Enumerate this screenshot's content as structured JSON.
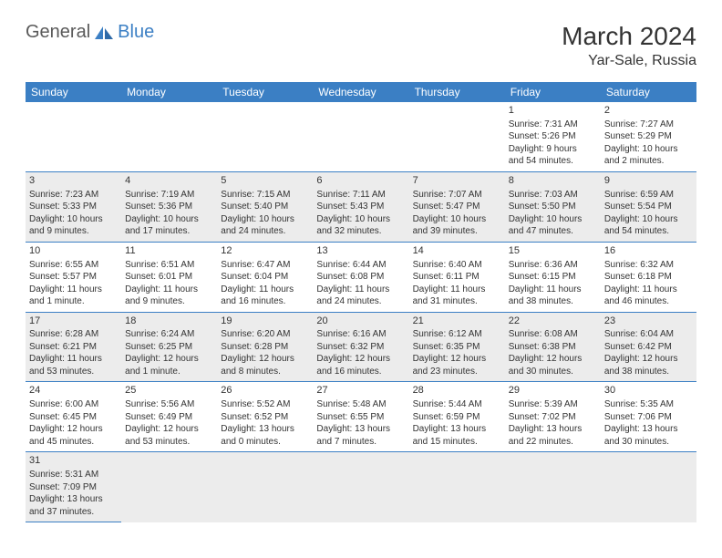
{
  "logo": {
    "part1": "General",
    "part2": "Blue"
  },
  "title": "March 2024",
  "location": "Yar-Sale, Russia",
  "colors": {
    "header_bg": "#3b7fc4",
    "header_fg": "#ffffff",
    "shade_bg": "#ececec",
    "rule": "#3b7fc4",
    "text": "#333333"
  },
  "dayHeaders": [
    "Sunday",
    "Monday",
    "Tuesday",
    "Wednesday",
    "Thursday",
    "Friday",
    "Saturday"
  ],
  "weeks": [
    {
      "shaded": false,
      "days": [
        null,
        null,
        null,
        null,
        null,
        {
          "n": "1",
          "sr": "Sunrise: 7:31 AM",
          "ss": "Sunset: 5:26 PM",
          "dl1": "Daylight: 9 hours",
          "dl2": "and 54 minutes."
        },
        {
          "n": "2",
          "sr": "Sunrise: 7:27 AM",
          "ss": "Sunset: 5:29 PM",
          "dl1": "Daylight: 10 hours",
          "dl2": "and 2 minutes."
        }
      ]
    },
    {
      "shaded": true,
      "days": [
        {
          "n": "3",
          "sr": "Sunrise: 7:23 AM",
          "ss": "Sunset: 5:33 PM",
          "dl1": "Daylight: 10 hours",
          "dl2": "and 9 minutes."
        },
        {
          "n": "4",
          "sr": "Sunrise: 7:19 AM",
          "ss": "Sunset: 5:36 PM",
          "dl1": "Daylight: 10 hours",
          "dl2": "and 17 minutes."
        },
        {
          "n": "5",
          "sr": "Sunrise: 7:15 AM",
          "ss": "Sunset: 5:40 PM",
          "dl1": "Daylight: 10 hours",
          "dl2": "and 24 minutes."
        },
        {
          "n": "6",
          "sr": "Sunrise: 7:11 AM",
          "ss": "Sunset: 5:43 PM",
          "dl1": "Daylight: 10 hours",
          "dl2": "and 32 minutes."
        },
        {
          "n": "7",
          "sr": "Sunrise: 7:07 AM",
          "ss": "Sunset: 5:47 PM",
          "dl1": "Daylight: 10 hours",
          "dl2": "and 39 minutes."
        },
        {
          "n": "8",
          "sr": "Sunrise: 7:03 AM",
          "ss": "Sunset: 5:50 PM",
          "dl1": "Daylight: 10 hours",
          "dl2": "and 47 minutes."
        },
        {
          "n": "9",
          "sr": "Sunrise: 6:59 AM",
          "ss": "Sunset: 5:54 PM",
          "dl1": "Daylight: 10 hours",
          "dl2": "and 54 minutes."
        }
      ]
    },
    {
      "shaded": false,
      "days": [
        {
          "n": "10",
          "sr": "Sunrise: 6:55 AM",
          "ss": "Sunset: 5:57 PM",
          "dl1": "Daylight: 11 hours",
          "dl2": "and 1 minute."
        },
        {
          "n": "11",
          "sr": "Sunrise: 6:51 AM",
          "ss": "Sunset: 6:01 PM",
          "dl1": "Daylight: 11 hours",
          "dl2": "and 9 minutes."
        },
        {
          "n": "12",
          "sr": "Sunrise: 6:47 AM",
          "ss": "Sunset: 6:04 PM",
          "dl1": "Daylight: 11 hours",
          "dl2": "and 16 minutes."
        },
        {
          "n": "13",
          "sr": "Sunrise: 6:44 AM",
          "ss": "Sunset: 6:08 PM",
          "dl1": "Daylight: 11 hours",
          "dl2": "and 24 minutes."
        },
        {
          "n": "14",
          "sr": "Sunrise: 6:40 AM",
          "ss": "Sunset: 6:11 PM",
          "dl1": "Daylight: 11 hours",
          "dl2": "and 31 minutes."
        },
        {
          "n": "15",
          "sr": "Sunrise: 6:36 AM",
          "ss": "Sunset: 6:15 PM",
          "dl1": "Daylight: 11 hours",
          "dl2": "and 38 minutes."
        },
        {
          "n": "16",
          "sr": "Sunrise: 6:32 AM",
          "ss": "Sunset: 6:18 PM",
          "dl1": "Daylight: 11 hours",
          "dl2": "and 46 minutes."
        }
      ]
    },
    {
      "shaded": true,
      "days": [
        {
          "n": "17",
          "sr": "Sunrise: 6:28 AM",
          "ss": "Sunset: 6:21 PM",
          "dl1": "Daylight: 11 hours",
          "dl2": "and 53 minutes."
        },
        {
          "n": "18",
          "sr": "Sunrise: 6:24 AM",
          "ss": "Sunset: 6:25 PM",
          "dl1": "Daylight: 12 hours",
          "dl2": "and 1 minute."
        },
        {
          "n": "19",
          "sr": "Sunrise: 6:20 AM",
          "ss": "Sunset: 6:28 PM",
          "dl1": "Daylight: 12 hours",
          "dl2": "and 8 minutes."
        },
        {
          "n": "20",
          "sr": "Sunrise: 6:16 AM",
          "ss": "Sunset: 6:32 PM",
          "dl1": "Daylight: 12 hours",
          "dl2": "and 16 minutes."
        },
        {
          "n": "21",
          "sr": "Sunrise: 6:12 AM",
          "ss": "Sunset: 6:35 PM",
          "dl1": "Daylight: 12 hours",
          "dl2": "and 23 minutes."
        },
        {
          "n": "22",
          "sr": "Sunrise: 6:08 AM",
          "ss": "Sunset: 6:38 PM",
          "dl1": "Daylight: 12 hours",
          "dl2": "and 30 minutes."
        },
        {
          "n": "23",
          "sr": "Sunrise: 6:04 AM",
          "ss": "Sunset: 6:42 PM",
          "dl1": "Daylight: 12 hours",
          "dl2": "and 38 minutes."
        }
      ]
    },
    {
      "shaded": false,
      "days": [
        {
          "n": "24",
          "sr": "Sunrise: 6:00 AM",
          "ss": "Sunset: 6:45 PM",
          "dl1": "Daylight: 12 hours",
          "dl2": "and 45 minutes."
        },
        {
          "n": "25",
          "sr": "Sunrise: 5:56 AM",
          "ss": "Sunset: 6:49 PM",
          "dl1": "Daylight: 12 hours",
          "dl2": "and 53 minutes."
        },
        {
          "n": "26",
          "sr": "Sunrise: 5:52 AM",
          "ss": "Sunset: 6:52 PM",
          "dl1": "Daylight: 13 hours",
          "dl2": "and 0 minutes."
        },
        {
          "n": "27",
          "sr": "Sunrise: 5:48 AM",
          "ss": "Sunset: 6:55 PM",
          "dl1": "Daylight: 13 hours",
          "dl2": "and 7 minutes."
        },
        {
          "n": "28",
          "sr": "Sunrise: 5:44 AM",
          "ss": "Sunset: 6:59 PM",
          "dl1": "Daylight: 13 hours",
          "dl2": "and 15 minutes."
        },
        {
          "n": "29",
          "sr": "Sunrise: 5:39 AM",
          "ss": "Sunset: 7:02 PM",
          "dl1": "Daylight: 13 hours",
          "dl2": "and 22 minutes."
        },
        {
          "n": "30",
          "sr": "Sunrise: 5:35 AM",
          "ss": "Sunset: 7:06 PM",
          "dl1": "Daylight: 13 hours",
          "dl2": "and 30 minutes."
        }
      ]
    },
    {
      "shaded": true,
      "last": true,
      "days": [
        {
          "n": "31",
          "sr": "Sunrise: 5:31 AM",
          "ss": "Sunset: 7:09 PM",
          "dl1": "Daylight: 13 hours",
          "dl2": "and 37 minutes."
        },
        null,
        null,
        null,
        null,
        null,
        null
      ]
    }
  ]
}
